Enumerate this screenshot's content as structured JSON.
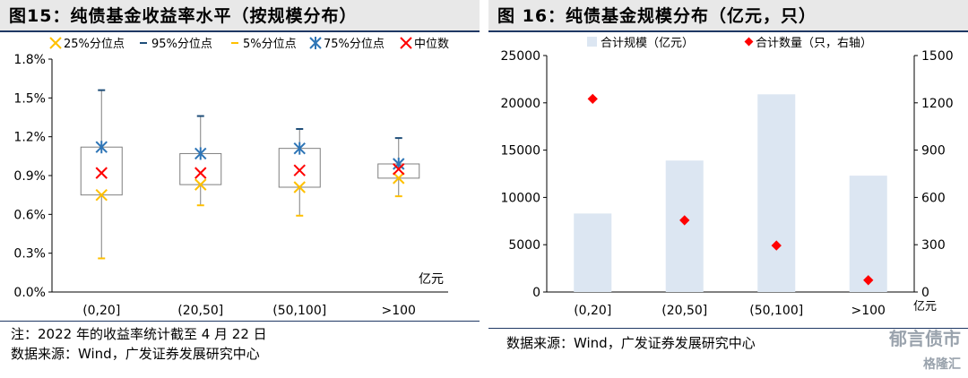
{
  "left": {
    "title": "图15：纯债基金收益率水平（按规模分布）",
    "note": "注：2022 年的收益率统计截至 4 月 22 日",
    "source": "数据来源：Wind，广发证券发展研究中心"
  },
  "right": {
    "title": "图 16：纯债基金规模分布（亿元，只）",
    "source": "数据来源：Wind，广发证券发展研究中心"
  },
  "watermark": {
    "text": "郁言债市",
    "brand": "格隆汇"
  },
  "colors": {
    "title_line": "#1f3864",
    "bar": "#dce6f2",
    "dot": "#ff0000",
    "box_line": "#7f7f7f",
    "p25": "#ffc000",
    "p95": "#1f4e79",
    "p5": "#ffc000",
    "p75": "#2e75b6",
    "median": "#ff0000"
  },
  "chart_data": [
    {
      "type": "box",
      "categories": [
        "(0,20]",
        "(20,50]",
        "(50,100]",
        ">100"
      ],
      "unit_label": "亿元",
      "ylim": [
        0.0,
        1.8
      ],
      "yticks": [
        "0.0%",
        "0.3%",
        "0.6%",
        "0.9%",
        "1.2%",
        "1.5%",
        "1.8%"
      ],
      "legend": [
        "25%分位点",
        "95%分位点",
        "5%分位点",
        "75%分位点",
        "中位数"
      ],
      "series": [
        {
          "name": "25%分位点",
          "values": [
            0.75,
            0.83,
            0.81,
            0.88
          ]
        },
        {
          "name": "95%分位点",
          "values": [
            1.56,
            1.36,
            1.26,
            1.19
          ]
        },
        {
          "name": "5%分位点",
          "values": [
            0.26,
            0.67,
            0.59,
            0.74
          ]
        },
        {
          "name": "75%分位点",
          "values": [
            1.12,
            1.07,
            1.11,
            0.99
          ]
        },
        {
          "name": "中位数",
          "values": [
            0.92,
            0.92,
            0.94,
            0.95
          ]
        }
      ]
    },
    {
      "type": "bar",
      "categories": [
        "(0,20]",
        "(20,50]",
        "(50,100]",
        ">100"
      ],
      "unit_label": "亿元",
      "ylim": [
        0,
        25000
      ],
      "yticks": [
        "0",
        "5000",
        "10000",
        "15000",
        "20000",
        "25000"
      ],
      "y2lim": [
        0,
        1500
      ],
      "y2ticks": [
        "0",
        "300",
        "600",
        "900",
        "1200",
        "1500"
      ],
      "legend": [
        "合计规模（亿元）",
        "合计数量（只，右轴）"
      ],
      "series": [
        {
          "name": "合计规模（亿元）",
          "axis": "left",
          "values": [
            8300,
            13900,
            20900,
            12300
          ]
        },
        {
          "name": "合计数量（只，右轴）",
          "axis": "right",
          "values": [
            1225,
            455,
            295,
            75
          ]
        }
      ]
    }
  ]
}
